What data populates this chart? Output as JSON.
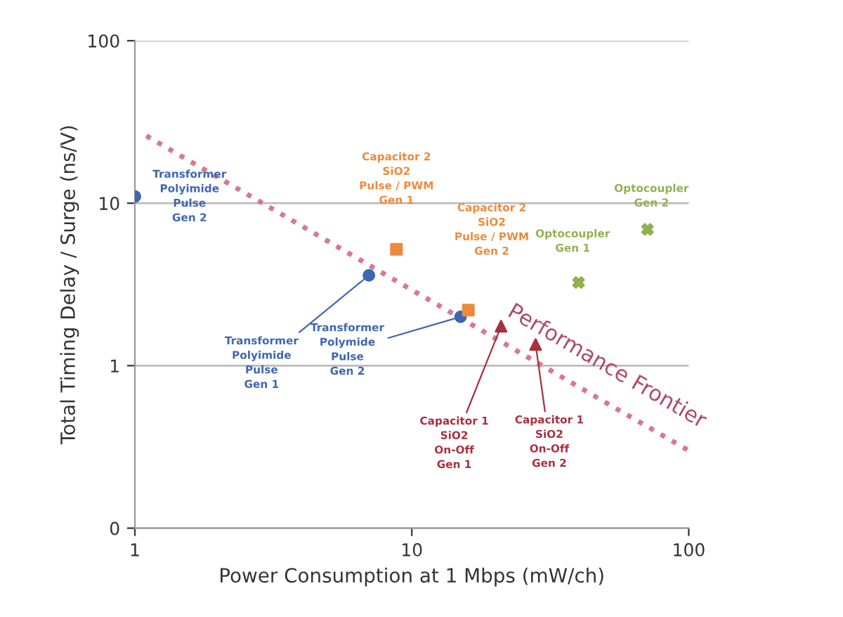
{
  "chart_data": {
    "type": "scatter",
    "xlabel": "Power Consumption at 1 Mbps (mW/ch)",
    "ylabel": "Total Timing Delay / Surge (ns/V)",
    "log": "xy",
    "xlim": [
      1,
      100
    ],
    "ylim": [
      0.1,
      100
    ],
    "xticks": [
      1,
      10,
      100
    ],
    "yticks": [
      {
        "value": 0.1,
        "label": "0"
      },
      1,
      10,
      100
    ],
    "grid": "y",
    "legend": false,
    "series": [
      {
        "color": "#3f66b0",
        "marker": "circle",
        "x": [
          1.0,
          7.0,
          15
        ],
        "values": [
          11,
          3.6,
          2.0
        ]
      },
      {
        "color": "#ec8a3c",
        "marker": "square",
        "x": [
          8.8,
          16
        ],
        "values": [
          5.2,
          2.2
        ]
      },
      {
        "color": "#a8303f",
        "marker": "triangle",
        "x": [
          21,
          28
        ],
        "values": [
          1.75,
          1.35
        ]
      },
      {
        "color": "#93b050",
        "marker": "cross",
        "x": [
          40,
          71
        ],
        "values": [
          3.25,
          6.9
        ]
      },
      {
        "type": "line",
        "color": "#d77890",
        "marker": "none",
        "line_style": "dotted",
        "x": [
          1.1,
          100
        ],
        "values": [
          26,
          0.3
        ]
      }
    ],
    "annotations": [
      {
        "text": "Transformer\nPolyimide\nPulse\nGen 2",
        "x": 1.0,
        "y": 11
      },
      {
        "text": "Transformer\nPolyimide\nPulse\nGen 1",
        "x": 7.0,
        "y": 3.6
      },
      {
        "text": "Transformer\nPolymide\nPulse\nGen 2",
        "x": 15,
        "y": 2.0
      },
      "Capacitor 2\nSiO2\nPulse / PWM\nGen 1",
      "Capacitor 2\nSiO2\nPulse / PWM\nGen 2",
      {
        "text": "Capacitor 1\nSiO2\nOn-Off\nGen 1",
        "x": 21,
        "y": 1.75
      },
      {
        "text": "Capacitor 1\nSiO2\nOn-Off\nGen 2",
        "x": 28,
        "y": 1.35
      },
      {
        "text": "Optocoupler\nGen 1",
        "x": 40,
        "y": 3.25
      },
      {
        "text": "Optocoupler\nGen 2",
        "x": 71,
        "y": 6.9
      },
      "Performance Frontier"
    ]
  }
}
